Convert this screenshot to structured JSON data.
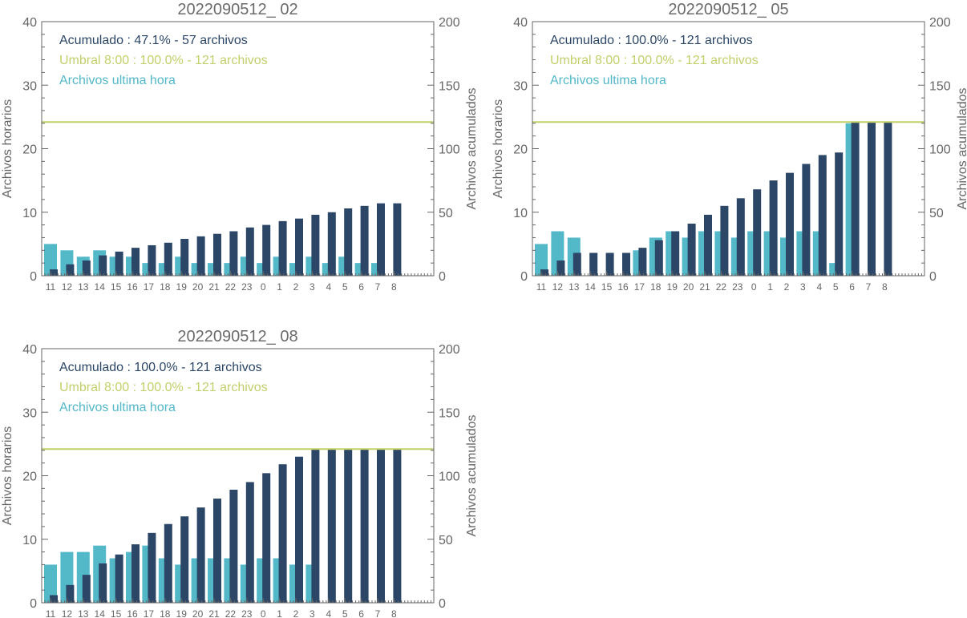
{
  "colors": {
    "hourly": "#53b8c8",
    "cumulative": "#2b4666",
    "threshold": "#c3cf6b",
    "axis": "#666666",
    "title": "#6b6b6b"
  },
  "chart_data": [
    {
      "type": "bar",
      "title": "2022090512_ 02",
      "categories": [
        "11",
        "12",
        "13",
        "14",
        "15",
        "16",
        "17",
        "18",
        "19",
        "20",
        "21",
        "22",
        "23",
        "0",
        "1",
        "2",
        "3",
        "4",
        "5",
        "6",
        "7",
        "8"
      ],
      "ylabel_left": "Archivos horarios",
      "ylabel_right": "Archivos acumulados",
      "ylim_left": [
        0,
        40
      ],
      "ylim_right": [
        0,
        200
      ],
      "yticks_left": [
        "0",
        "10",
        "20",
        "30",
        "40"
      ],
      "yticks_right": [
        "0",
        "50",
        "100",
        "150",
        "200"
      ],
      "legend": [
        "Acumulado : 47.1% - 57 archivos",
        "Umbral 8:00 : 100.0% - 121 archivos",
        "Archivos ultima hora"
      ],
      "threshold_right": 121,
      "series": [
        {
          "name": "Archivos ultima hora",
          "axis": "left",
          "values": [
            5,
            4,
            3,
            4,
            3,
            3,
            2,
            2,
            3,
            2,
            2,
            2,
            3,
            2,
            3,
            2,
            3,
            2,
            3,
            2,
            2,
            null
          ]
        },
        {
          "name": "Acumulado",
          "axis": "right",
          "values": [
            5,
            9,
            12,
            16,
            19,
            22,
            24,
            26,
            29,
            31,
            33,
            35,
            38,
            40,
            43,
            45,
            48,
            50,
            53,
            55,
            57,
            57
          ]
        }
      ]
    },
    {
      "type": "bar",
      "title": "2022090512_ 05",
      "categories": [
        "11",
        "12",
        "13",
        "14",
        "15",
        "16",
        "17",
        "18",
        "19",
        "20",
        "21",
        "22",
        "23",
        "0",
        "1",
        "2",
        "3",
        "4",
        "5",
        "6",
        "7",
        "8"
      ],
      "ylabel_left": "Archivos horarios",
      "ylabel_right": "Archivos acumulados",
      "ylim_left": [
        0,
        40
      ],
      "ylim_right": [
        0,
        200
      ],
      "yticks_left": [
        "0",
        "10",
        "20",
        "30",
        "40"
      ],
      "yticks_right": [
        "0",
        "50",
        "100",
        "150",
        "200"
      ],
      "legend": [
        "Acumulado : 100.0% - 121 archivos",
        "Umbral 8:00 : 100.0% - 121 archivos",
        "Archivos ultima hora"
      ],
      "threshold_right": 121,
      "series": [
        {
          "name": "Archivos ultima hora",
          "axis": "left",
          "values": [
            5,
            7,
            6,
            0,
            0,
            0,
            4,
            6,
            7,
            6,
            7,
            7,
            6,
            7,
            7,
            6,
            7,
            7,
            2,
            24,
            null,
            null
          ]
        },
        {
          "name": "Acumulado",
          "axis": "right",
          "values": [
            5,
            12,
            18,
            18,
            18,
            18,
            22,
            28,
            35,
            41,
            48,
            55,
            61,
            68,
            75,
            81,
            88,
            95,
            97,
            121,
            121,
            121
          ]
        }
      ]
    },
    {
      "type": "bar",
      "title": "2022090512_ 08",
      "categories": [
        "11",
        "12",
        "13",
        "14",
        "15",
        "16",
        "17",
        "18",
        "19",
        "20",
        "21",
        "22",
        "23",
        "0",
        "1",
        "2",
        "3",
        "4",
        "5",
        "6",
        "7",
        "8"
      ],
      "ylabel_left": "Archivos horarios",
      "ylabel_right": "Archivos acumulados",
      "ylim_left": [
        0,
        40
      ],
      "ylim_right": [
        0,
        200
      ],
      "yticks_left": [
        "0",
        "10",
        "20",
        "30",
        "40"
      ],
      "yticks_right": [
        "0",
        "50",
        "100",
        "150",
        "200"
      ],
      "legend": [
        "Acumulado : 100.0% - 121 archivos",
        "Umbral 8:00 : 100.0% - 121 archivos",
        "Archivos ultima hora"
      ],
      "threshold_right": 121,
      "series": [
        {
          "name": "Archivos ultima hora",
          "axis": "left",
          "values": [
            6,
            8,
            8,
            9,
            7,
            8,
            9,
            7,
            6,
            7,
            7,
            7,
            6,
            7,
            7,
            6,
            6,
            null,
            null,
            null,
            null,
            null
          ]
        },
        {
          "name": "Acumulado",
          "axis": "right",
          "values": [
            6,
            14,
            22,
            31,
            38,
            46,
            55,
            62,
            68,
            75,
            82,
            89,
            95,
            102,
            109,
            115,
            121,
            121,
            121,
            121,
            121,
            121
          ]
        }
      ]
    }
  ]
}
